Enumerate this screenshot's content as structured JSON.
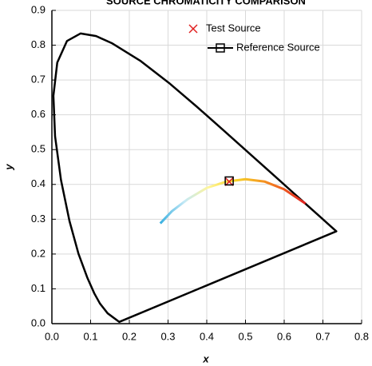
{
  "chart_data": {
    "type": "line",
    "title": "SOURCE CHROMATICITY COMPARISON",
    "x_label": "x",
    "y_label": "y",
    "xlim": [
      0,
      0.8
    ],
    "ylim": [
      0,
      0.9
    ],
    "xticks": [
      {
        "value": 0,
        "label": "0.0"
      },
      0.1,
      0.2,
      0.3,
      0.4,
      0.5,
      0.6,
      0.7,
      0.8
    ],
    "yticks": [
      {
        "value": 0,
        "label": "0.0"
      },
      0.1,
      0.2,
      0.3,
      0.4,
      0.5,
      0.6,
      0.7,
      0.8,
      0.9
    ],
    "grid": true,
    "legend": "top-right",
    "series": [
      {
        "color": "#000000",
        "closed": true,
        "x": [
          0.1741,
          0.144,
          0.1241,
          0.1096,
          0.0913,
          0.0687,
          0.0454,
          0.0235,
          0.0082,
          0.0039,
          0.0139,
          0.0389,
          0.0743,
          0.1142,
          0.1547,
          0.2296,
          0.3016,
          0.3731,
          0.4441,
          0.5125,
          0.5752,
          0.627,
          0.6915,
          0.719,
          0.7347
        ],
        "values": [
          0.005,
          0.0297,
          0.0578,
          0.0868,
          0.1327,
          0.2007,
          0.295,
          0.4127,
          0.5384,
          0.6548,
          0.7502,
          0.812,
          0.8338,
          0.8262,
          0.8059,
          0.7543,
          0.6923,
          0.6245,
          0.5547,
          0.4866,
          0.4242,
          0.3725,
          0.3083,
          0.2809,
          0.2653
        ]
      },
      {
        "colors": [
          "#3ab0e0",
          "#c4e9f6",
          "#fff59a",
          "#f7d72a",
          "#f5a623",
          "#f06020",
          "#e02020"
        ],
        "x": [
          0.28,
          0.31,
          0.35,
          0.4,
          0.45,
          0.5,
          0.55,
          0.6,
          0.655
        ],
        "values": [
          0.288,
          0.323,
          0.357,
          0.39,
          0.408,
          0.415,
          0.408,
          0.386,
          0.345
        ]
      },
      {
        "name": "Test Source",
        "marker": "x",
        "color": "#e02020",
        "x": [
          0.458
        ],
        "values": [
          0.408
        ]
      },
      {
        "name": "Reference Source",
        "marker": "square",
        "color": "#000000",
        "x": [
          0.458
        ],
        "values": [
          0.41
        ]
      }
    ]
  }
}
